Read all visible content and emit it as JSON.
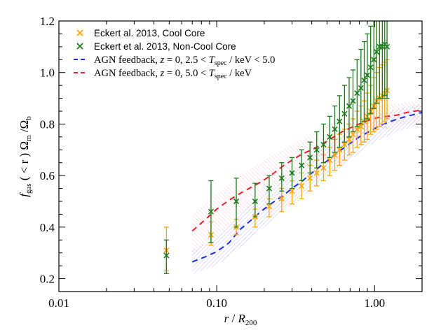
{
  "chart_data": {
    "type": "scatter",
    "x_scale": "log",
    "xlim": [
      0.01,
      2.0
    ],
    "ylim": [
      0.15,
      1.2
    ],
    "x_ticks": [
      {
        "value": 0.01,
        "label": "0.01"
      },
      {
        "value": 0.1,
        "label": "0.10"
      },
      {
        "value": 1.0,
        "label": "1.00"
      }
    ],
    "y_ticks": [
      {
        "value": 0.2,
        "label": "0.2"
      },
      {
        "value": 0.4,
        "label": "0.4"
      },
      {
        "value": 0.6,
        "label": "0.6"
      },
      {
        "value": 0.8,
        "label": "0.8"
      },
      {
        "value": 1.0,
        "label": "1.0"
      },
      {
        "value": 1.2,
        "label": "1.2"
      }
    ],
    "xlabel": {
      "var": "r",
      "sep": " / ",
      "var2": "R",
      "sub": "200"
    },
    "ylabel": {
      "f": "f",
      "f_sub": "gas",
      "mid": " ( < r ) Ω",
      "m_sub": "m",
      "slash": " /Ω",
      "b_sub": "b"
    },
    "legend_position": "top-left",
    "legend": [
      {
        "marker": "×",
        "color": "#FFA500",
        "text": "Eckert al. 2013, Cool Core"
      },
      {
        "marker": "×",
        "color": "#1A7A1A",
        "text": "Eckert et al. 2013, Non-Cool Core"
      },
      {
        "marker": "dash",
        "color": "#1C2FDB",
        "parts": [
          "AGN feedback, ",
          "z",
          " = 0, 2.5 < ",
          "T",
          "spec",
          " / keV < 5.0"
        ]
      },
      {
        "marker": "dash",
        "color": "#E8202A",
        "parts": [
          "AGN feedback, ",
          "z",
          " = 0, 5.0 < ",
          "T",
          "spec",
          " / keV"
        ]
      }
    ],
    "series": [
      {
        "name": "Eckert al. 2013, Cool Core",
        "color": "#FFA500",
        "points": [
          {
            "x": 0.048,
            "y": 0.31,
            "lo": 0.23,
            "hi": 0.4
          },
          {
            "x": 0.092,
            "y": 0.37,
            "lo": 0.33,
            "hi": 0.42
          },
          {
            "x": 0.133,
            "y": 0.4,
            "lo": 0.37,
            "hi": 0.43
          },
          {
            "x": 0.175,
            "y": 0.44,
            "lo": 0.4,
            "hi": 0.47
          },
          {
            "x": 0.215,
            "y": 0.48,
            "lo": 0.44,
            "hi": 0.51
          },
          {
            "x": 0.258,
            "y": 0.51,
            "lo": 0.46,
            "hi": 0.55
          },
          {
            "x": 0.3,
            "y": 0.54,
            "lo": 0.49,
            "hi": 0.58
          },
          {
            "x": 0.345,
            "y": 0.56,
            "lo": 0.51,
            "hi": 0.61
          },
          {
            "x": 0.39,
            "y": 0.59,
            "lo": 0.54,
            "hi": 0.64
          },
          {
            "x": 0.43,
            "y": 0.61,
            "lo": 0.56,
            "hi": 0.66
          },
          {
            "x": 0.475,
            "y": 0.63,
            "lo": 0.58,
            "hi": 0.68
          },
          {
            "x": 0.52,
            "y": 0.66,
            "lo": 0.6,
            "hi": 0.71
          },
          {
            "x": 0.56,
            "y": 0.68,
            "lo": 0.62,
            "hi": 0.74
          },
          {
            "x": 0.6,
            "y": 0.7,
            "lo": 0.64,
            "hi": 0.76
          },
          {
            "x": 0.645,
            "y": 0.72,
            "lo": 0.66,
            "hi": 0.78
          },
          {
            "x": 0.69,
            "y": 0.74,
            "lo": 0.68,
            "hi": 0.8
          },
          {
            "x": 0.73,
            "y": 0.76,
            "lo": 0.69,
            "hi": 0.82
          },
          {
            "x": 0.775,
            "y": 0.78,
            "lo": 0.71,
            "hi": 0.85
          },
          {
            "x": 0.82,
            "y": 0.79,
            "lo": 0.72,
            "hi": 0.87
          },
          {
            "x": 0.86,
            "y": 0.81,
            "lo": 0.73,
            "hi": 0.89
          },
          {
            "x": 0.9,
            "y": 0.83,
            "lo": 0.74,
            "hi": 0.92
          },
          {
            "x": 0.945,
            "y": 0.85,
            "lo": 0.76,
            "hi": 0.95
          },
          {
            "x": 0.99,
            "y": 0.87,
            "lo": 0.77,
            "hi": 0.98
          },
          {
            "x": 1.03,
            "y": 0.89,
            "lo": 0.78,
            "hi": 1.0
          },
          {
            "x": 1.075,
            "y": 0.9,
            "lo": 0.79,
            "hi": 1.02
          },
          {
            "x": 1.12,
            "y": 0.91,
            "lo": 0.8,
            "hi": 1.03
          },
          {
            "x": 1.16,
            "y": 0.92,
            "lo": 0.81,
            "hi": 1.04
          },
          {
            "x": 1.2,
            "y": 0.93,
            "lo": 0.82,
            "hi": 1.05
          }
        ]
      },
      {
        "name": "Eckert et al. 2013, Non-Cool Core",
        "color": "#1A7A1A",
        "points": [
          {
            "x": 0.048,
            "y": 0.29,
            "lo": 0.22,
            "hi": 0.35
          },
          {
            "x": 0.092,
            "y": 0.46,
            "lo": 0.34,
            "hi": 0.58
          },
          {
            "x": 0.133,
            "y": 0.5,
            "lo": 0.4,
            "hi": 0.59
          },
          {
            "x": 0.175,
            "y": 0.5,
            "lo": 0.44,
            "hi": 0.57
          },
          {
            "x": 0.215,
            "y": 0.55,
            "lo": 0.49,
            "hi": 0.6
          },
          {
            "x": 0.258,
            "y": 0.59,
            "lo": 0.54,
            "hi": 0.65
          },
          {
            "x": 0.3,
            "y": 0.61,
            "lo": 0.55,
            "hi": 0.67
          },
          {
            "x": 0.345,
            "y": 0.64,
            "lo": 0.58,
            "hi": 0.7
          },
          {
            "x": 0.39,
            "y": 0.67,
            "lo": 0.61,
            "hi": 0.73
          },
          {
            "x": 0.43,
            "y": 0.7,
            "lo": 0.63,
            "hi": 0.77
          },
          {
            "x": 0.475,
            "y": 0.72,
            "lo": 0.65,
            "hi": 0.8
          },
          {
            "x": 0.52,
            "y": 0.75,
            "lo": 0.67,
            "hi": 0.83
          },
          {
            "x": 0.56,
            "y": 0.78,
            "lo": 0.69,
            "hi": 0.87
          },
          {
            "x": 0.6,
            "y": 0.81,
            "lo": 0.71,
            "hi": 0.91
          },
          {
            "x": 0.645,
            "y": 0.84,
            "lo": 0.73,
            "hi": 0.95
          },
          {
            "x": 0.69,
            "y": 0.87,
            "lo": 0.75,
            "hi": 0.98
          },
          {
            "x": 0.73,
            "y": 0.89,
            "lo": 0.77,
            "hi": 1.01
          },
          {
            "x": 0.775,
            "y": 0.92,
            "lo": 0.79,
            "hi": 1.05
          },
          {
            "x": 0.82,
            "y": 0.94,
            "lo": 0.8,
            "hi": 1.09
          },
          {
            "x": 0.86,
            "y": 0.97,
            "lo": 0.81,
            "hi": 1.12
          },
          {
            "x": 0.9,
            "y": 0.99,
            "lo": 0.82,
            "hi": 1.15
          },
          {
            "x": 0.945,
            "y": 1.02,
            "lo": 0.84,
            "hi": 1.18
          },
          {
            "x": 0.99,
            "y": 1.05,
            "lo": 0.86,
            "hi": 1.22
          },
          {
            "x": 1.03,
            "y": 1.08,
            "lo": 0.88,
            "hi": 1.25
          },
          {
            "x": 1.075,
            "y": 1.1,
            "lo": 0.9,
            "hi": 1.28
          },
          {
            "x": 1.12,
            "y": 1.1,
            "lo": 0.9,
            "hi": 1.3
          },
          {
            "x": 1.16,
            "y": 1.11,
            "lo": 0.91,
            "hi": 1.32
          },
          {
            "x": 1.2,
            "y": 1.1,
            "lo": 0.9,
            "hi": 1.32
          }
        ]
      },
      {
        "name": "AGN feedback, z = 0, 2.5 < Tspec / keV < 5.0",
        "color": "#1C2FDB",
        "line_style": "dashed",
        "band_color": "#7070E8",
        "points": [
          {
            "x": 0.07,
            "y": 0.265
          },
          {
            "x": 0.085,
            "y": 0.285
          },
          {
            "x": 0.1,
            "y": 0.305
          },
          {
            "x": 0.12,
            "y": 0.34
          },
          {
            "x": 0.14,
            "y": 0.39
          },
          {
            "x": 0.16,
            "y": 0.42
          },
          {
            "x": 0.19,
            "y": 0.46
          },
          {
            "x": 0.22,
            "y": 0.49
          },
          {
            "x": 0.26,
            "y": 0.52
          },
          {
            "x": 0.3,
            "y": 0.55
          },
          {
            "x": 0.35,
            "y": 0.58
          },
          {
            "x": 0.4,
            "y": 0.61
          },
          {
            "x": 0.46,
            "y": 0.64
          },
          {
            "x": 0.52,
            "y": 0.665
          },
          {
            "x": 0.6,
            "y": 0.695
          },
          {
            "x": 0.7,
            "y": 0.725
          },
          {
            "x": 0.8,
            "y": 0.75
          },
          {
            "x": 0.92,
            "y": 0.77
          },
          {
            "x": 1.05,
            "y": 0.79
          },
          {
            "x": 1.2,
            "y": 0.805
          },
          {
            "x": 1.4,
            "y": 0.82
          },
          {
            "x": 1.6,
            "y": 0.83
          },
          {
            "x": 2.0,
            "y": 0.845
          }
        ],
        "band": [
          {
            "x": 0.07,
            "lo": 0.22,
            "hi": 0.31
          },
          {
            "x": 0.1,
            "lo": 0.25,
            "hi": 0.36
          },
          {
            "x": 0.14,
            "lo": 0.32,
            "hi": 0.46
          },
          {
            "x": 0.2,
            "lo": 0.4,
            "hi": 0.53
          },
          {
            "x": 0.3,
            "lo": 0.49,
            "hi": 0.61
          },
          {
            "x": 0.45,
            "lo": 0.57,
            "hi": 0.7
          },
          {
            "x": 0.7,
            "lo": 0.66,
            "hi": 0.78
          },
          {
            "x": 1.0,
            "lo": 0.73,
            "hi": 0.83
          },
          {
            "x": 1.4,
            "lo": 0.77,
            "hi": 0.86
          },
          {
            "x": 2.0,
            "lo": 0.8,
            "hi": 0.88
          }
        ]
      },
      {
        "name": "AGN feedback, z = 0, 5.0 < Tspec / keV",
        "color": "#E8202A",
        "line_style": "dashed",
        "band_color": "#F29AA0",
        "points": [
          {
            "x": 0.07,
            "y": 0.385
          },
          {
            "x": 0.085,
            "y": 0.43
          },
          {
            "x": 0.1,
            "y": 0.47
          },
          {
            "x": 0.12,
            "y": 0.505
          },
          {
            "x": 0.14,
            "y": 0.53
          },
          {
            "x": 0.16,
            "y": 0.55
          },
          {
            "x": 0.19,
            "y": 0.575
          },
          {
            "x": 0.22,
            "y": 0.6
          },
          {
            "x": 0.26,
            "y": 0.635
          },
          {
            "x": 0.3,
            "y": 0.66
          },
          {
            "x": 0.35,
            "y": 0.685
          },
          {
            "x": 0.4,
            "y": 0.7
          },
          {
            "x": 0.46,
            "y": 0.72
          },
          {
            "x": 0.52,
            "y": 0.74
          },
          {
            "x": 0.6,
            "y": 0.765
          },
          {
            "x": 0.7,
            "y": 0.785
          },
          {
            "x": 0.8,
            "y": 0.8
          },
          {
            "x": 0.92,
            "y": 0.815
          },
          {
            "x": 1.05,
            "y": 0.825
          },
          {
            "x": 1.2,
            "y": 0.83
          },
          {
            "x": 1.4,
            "y": 0.835
          },
          {
            "x": 1.6,
            "y": 0.845
          },
          {
            "x": 2.0,
            "y": 0.855
          }
        ],
        "band": [
          {
            "x": 0.07,
            "lo": 0.29,
            "hi": 0.45
          },
          {
            "x": 0.1,
            "lo": 0.36,
            "hi": 0.53
          },
          {
            "x": 0.14,
            "lo": 0.45,
            "hi": 0.6
          },
          {
            "x": 0.2,
            "lo": 0.52,
            "hi": 0.66
          },
          {
            "x": 0.3,
            "lo": 0.6,
            "hi": 0.72
          },
          {
            "x": 0.45,
            "lo": 0.66,
            "hi": 0.78
          },
          {
            "x": 0.7,
            "lo": 0.73,
            "hi": 0.84
          },
          {
            "x": 1.0,
            "lo": 0.77,
            "hi": 0.87
          },
          {
            "x": 1.4,
            "lo": 0.79,
            "hi": 0.88
          },
          {
            "x": 2.0,
            "lo": 0.81,
            "hi": 0.89
          }
        ]
      }
    ]
  }
}
